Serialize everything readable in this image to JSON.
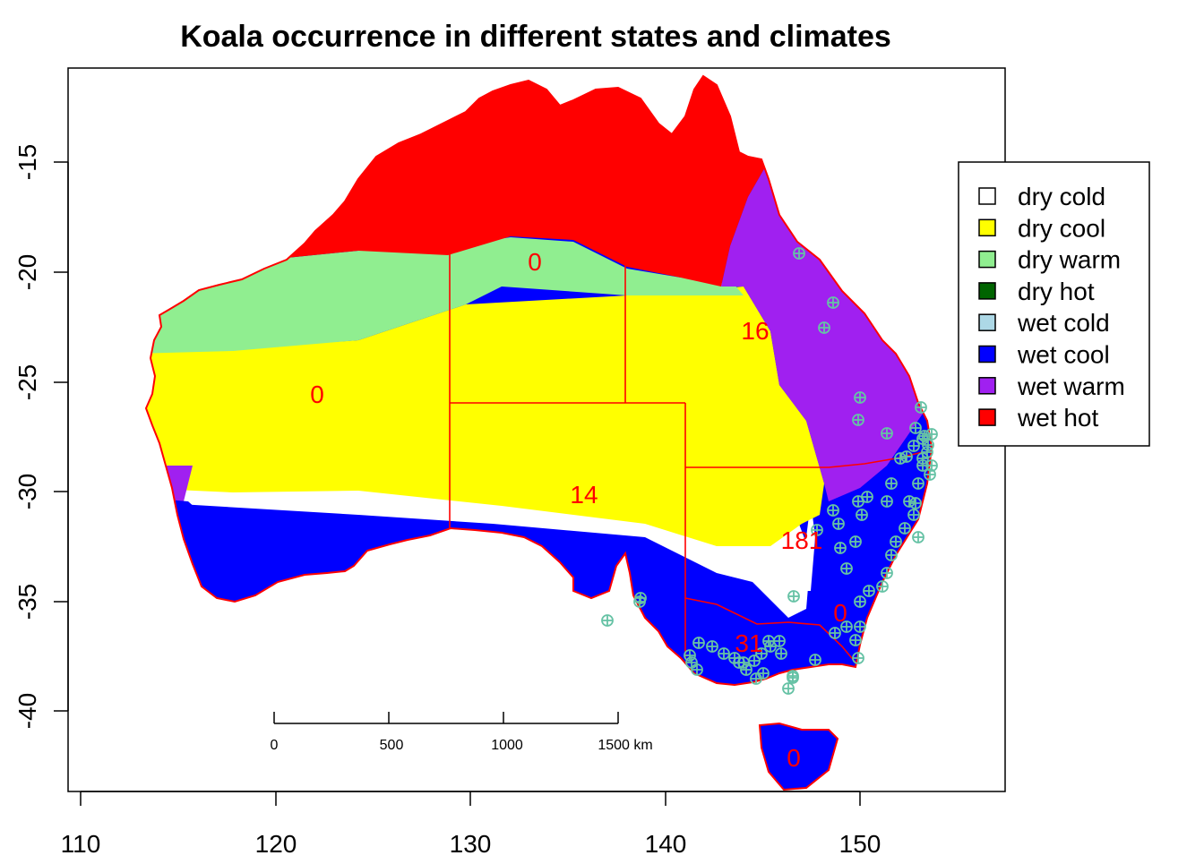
{
  "title": "Koala occurrence in different states and climates",
  "axes": {
    "x_ticks": [
      "110",
      "120",
      "130",
      "140",
      "150"
    ],
    "y_ticks": [
      "-15",
      "-20",
      "-25",
      "-30",
      "-35",
      "-40"
    ]
  },
  "legend": {
    "items": [
      {
        "label": "dry cold",
        "color": "#ffffff"
      },
      {
        "label": "dry cool",
        "color": "#ffff00"
      },
      {
        "label": "dry warm",
        "color": "#90ee90"
      },
      {
        "label": "dry hot",
        "color": "#006400"
      },
      {
        "label": "wet cold",
        "color": "#add8e6"
      },
      {
        "label": "wet cool",
        "color": "#0000ff"
      },
      {
        "label": "wet warm",
        "color": "#a020f0"
      },
      {
        "label": "wet hot",
        "color": "#ff0000"
      }
    ]
  },
  "state_counts": [
    {
      "state": "WA",
      "label": "0"
    },
    {
      "state": "NT",
      "label": "0"
    },
    {
      "state": "QLD",
      "label": "16"
    },
    {
      "state": "SA",
      "label": "14"
    },
    {
      "state": "NSW",
      "label": "181"
    },
    {
      "state": "ACT",
      "label": "0"
    },
    {
      "state": "VIC",
      "label": "31"
    },
    {
      "state": "TAS",
      "label": "0"
    }
  ],
  "scale_bar": {
    "labels": [
      "0",
      "500",
      "1000",
      "1500 km"
    ]
  },
  "colors": {
    "state_border": "#ff0000",
    "occurrence_point": "#66c2a5",
    "count_label": "#ff0000"
  }
}
